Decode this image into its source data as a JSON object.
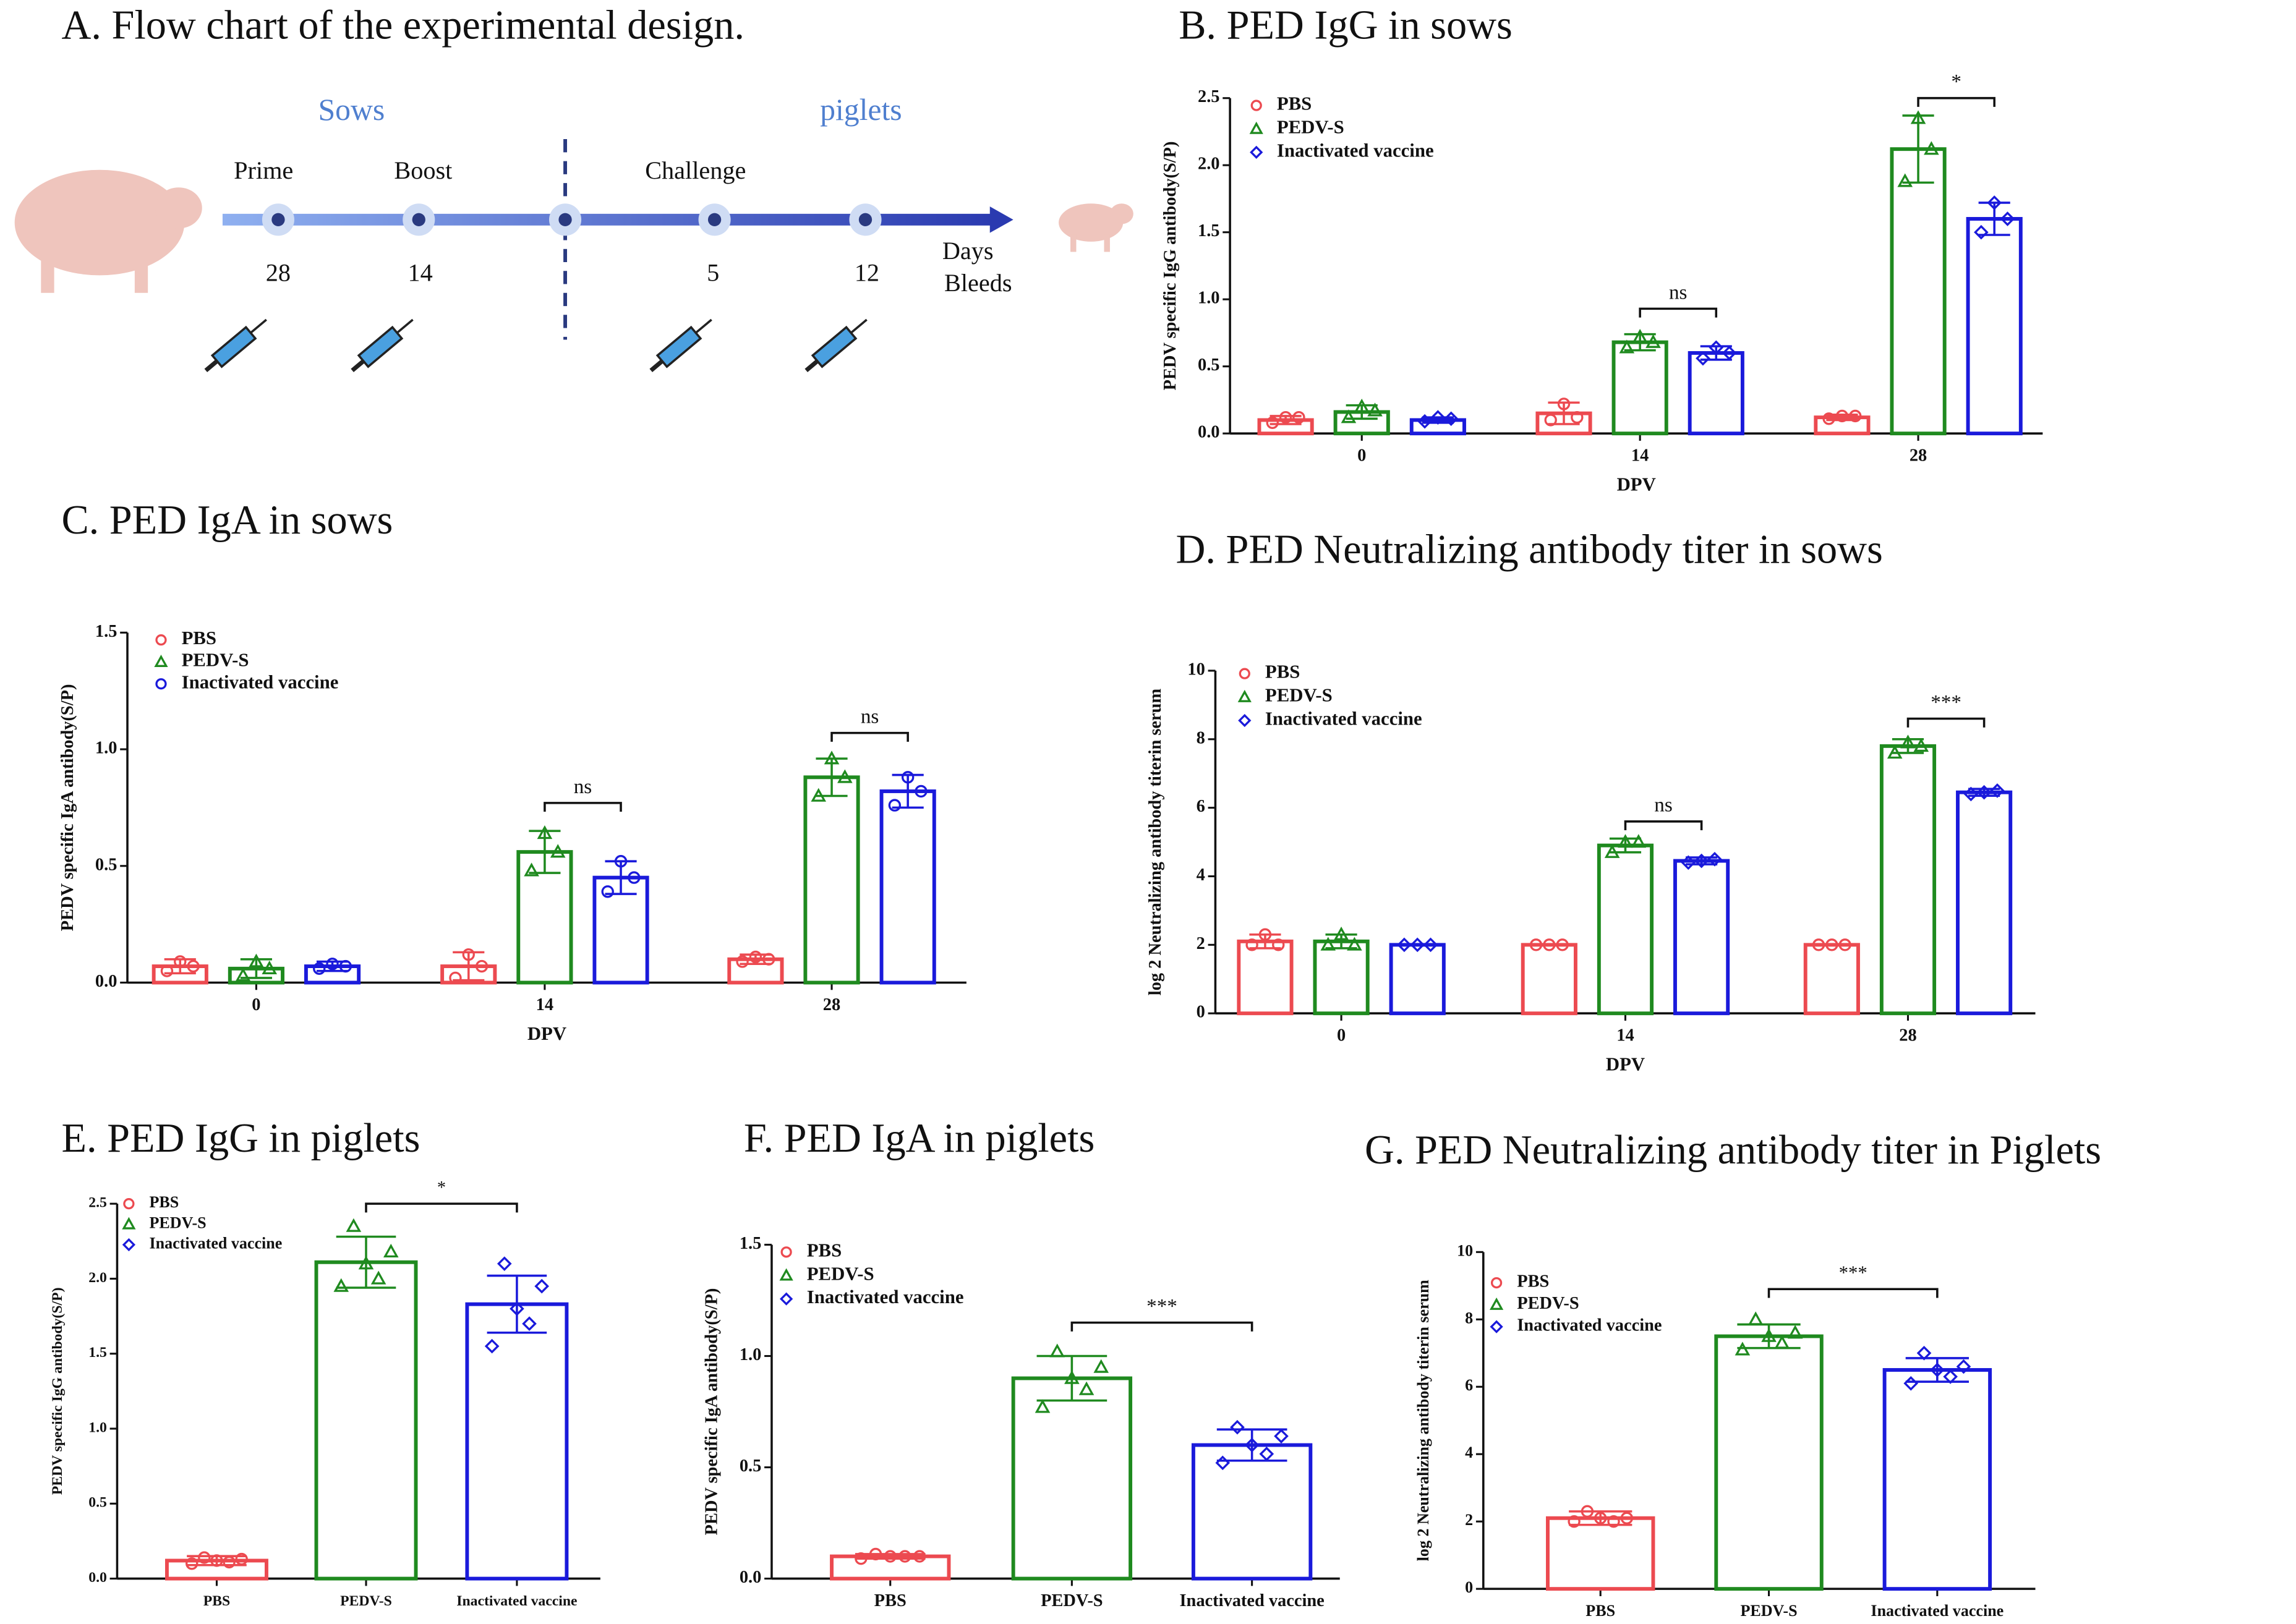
{
  "flow": {
    "title": "A. Flow chart of the experimental design.",
    "phases": [
      "Sows",
      "piglets"
    ],
    "events": [
      {
        "label": "Prime",
        "day": "28"
      },
      {
        "label": "Boost",
        "day": "14"
      },
      {
        "label": "Challenge",
        "day": "5"
      },
      {
        "day": "12"
      }
    ],
    "axis_labels": [
      "Days",
      "Bleeds"
    ]
  },
  "chart_data": [
    {
      "type": "bar",
      "title": "B. PED IgG in sows",
      "xlabel": "DPV",
      "ylabel": "PEDV specific IgG  antibody(S/P)",
      "categories": [
        "0",
        "14",
        "28"
      ],
      "ylim": [
        0,
        2.5
      ],
      "yticks": [
        {
          "value": 0,
          "label": "0.0"
        },
        0.5,
        {
          "value": 1,
          "label": "1.0"
        },
        1.5,
        {
          "value": 2,
          "label": "2.0"
        },
        2.5
      ],
      "series": [
        {
          "name": "PBS",
          "color": "#ec4a50",
          "marker": "circle",
          "values": [
            0.1,
            0.15,
            0.12
          ],
          "errors": [
            0.03,
            0.08,
            0.02
          ],
          "points": [
            [
              0.08,
              0.12,
              0.12
            ],
            [
              0.1,
              0.22,
              0.12
            ],
            [
              0.11,
              0.13,
              0.13
            ]
          ]
        },
        {
          "name": "PEDV-S",
          "color": "#1f8a1f",
          "marker": "triangle",
          "values": [
            0.16,
            0.68,
            2.12
          ],
          "errors": [
            0.05,
            0.06,
            0.25
          ],
          "points": [
            [
              0.12,
              0.2,
              0.17
            ],
            [
              0.64,
              0.72,
              0.68
            ],
            [
              1.88,
              2.35,
              2.12
            ]
          ]
        },
        {
          "name": "Inactivated vaccine",
          "color": "#1a1adb",
          "marker": "diamond",
          "values": [
            0.1,
            0.6,
            1.6
          ],
          "errors": [
            0.02,
            0.05,
            0.12
          ],
          "points": [
            [
              0.09,
              0.12,
              0.11
            ],
            [
              0.56,
              0.64,
              0.6
            ],
            [
              1.5,
              1.72,
              1.6
            ]
          ]
        }
      ],
      "brackets": [
        {
          "category": "14",
          "label": "ns",
          "y": 0.93
        },
        {
          "category": "28",
          "label": "*",
          "y": 2.5
        }
      ]
    },
    {
      "type": "bar",
      "title": "C. PED IgA in sows",
      "xlabel": "DPV",
      "ylabel": "PEDV specific IgA  antibody(S/P)",
      "categories": [
        "0",
        "14",
        "28"
      ],
      "ylim": [
        0,
        1.5
      ],
      "yticks": [
        {
          "value": 0,
          "label": "0.0"
        },
        0.5,
        {
          "value": 1,
          "label": "1.0"
        },
        1.5
      ],
      "series": [
        {
          "name": "PBS",
          "color": "#ec4a50",
          "marker": "circle",
          "values": [
            0.07,
            0.07,
            0.1
          ],
          "errors": [
            0.03,
            0.06,
            0.02
          ],
          "points": [
            [
              0.05,
              0.09,
              0.07
            ],
            [
              0.02,
              0.12,
              0.07
            ],
            [
              0.09,
              0.11,
              0.1
            ]
          ]
        },
        {
          "name": "PEDV-S",
          "color": "#1f8a1f",
          "marker": "triangle",
          "values": [
            0.06,
            0.56,
            0.88
          ],
          "errors": [
            0.04,
            0.09,
            0.08
          ],
          "points": [
            [
              0.03,
              0.09,
              0.06
            ],
            [
              0.48,
              0.64,
              0.56
            ],
            [
              0.8,
              0.96,
              0.88
            ]
          ]
        },
        {
          "name": "Inactivated vaccine",
          "color": "#1a1adb",
          "marker": "circle",
          "values": [
            0.07,
            0.45,
            0.82
          ],
          "errors": [
            0.02,
            0.07,
            0.07
          ],
          "points": [
            [
              0.06,
              0.08,
              0.07
            ],
            [
              0.39,
              0.52,
              0.45
            ],
            [
              0.76,
              0.88,
              0.82
            ]
          ]
        }
      ],
      "brackets": [
        {
          "category": "14",
          "label": "ns",
          "y": 0.77
        },
        {
          "category": "28",
          "label": "ns",
          "y": 1.07
        }
      ]
    },
    {
      "type": "bar",
      "title": "D. PED Neutralizing antibody titer in sows",
      "xlabel": "DPV",
      "ylabel": "log 2 Neutralizing antibody titerin serum",
      "categories": [
        "0",
        "14",
        "28"
      ],
      "ylim": [
        0,
        10
      ],
      "yticks": [
        0,
        2,
        4,
        6,
        8,
        10
      ],
      "series": [
        {
          "name": "PBS",
          "color": "#ec4a50",
          "marker": "circle",
          "values": [
            2.1,
            2,
            2
          ],
          "errors": [
            0.2,
            0,
            0
          ],
          "points": [
            [
              2,
              2.3,
              2
            ],
            [
              2,
              2,
              2
            ],
            [
              2,
              2,
              2
            ]
          ]
        },
        {
          "name": "PEDV-S",
          "color": "#1f8a1f",
          "marker": "triangle",
          "values": [
            2.1,
            4.9,
            7.8
          ],
          "errors": [
            0.2,
            0.2,
            0.2
          ],
          "points": [
            [
              2,
              2.3,
              2
            ],
            [
              4.7,
              5,
              5
            ],
            [
              7.6,
              7.9,
              7.8
            ]
          ]
        },
        {
          "name": "Inactivated vaccine",
          "color": "#1a1adb",
          "marker": "diamond",
          "values": [
            2,
            4.45,
            6.45
          ],
          "errors": [
            0,
            0.1,
            0.1
          ],
          "points": [
            [
              2,
              2,
              2
            ],
            [
              4.4,
              4.45,
              4.5
            ],
            [
              6.4,
              6.45,
              6.5
            ]
          ]
        }
      ],
      "brackets": [
        {
          "category": "14",
          "label": "ns",
          "y": 5.6
        },
        {
          "category": "28",
          "label": "***",
          "y": 8.6
        }
      ]
    },
    {
      "type": "bar",
      "title": "E. PED IgG in piglets",
      "ylabel": "PEDV specific IgG  antibody(S/P)",
      "categories": [
        "PBS",
        "PEDV-S",
        "Inactivated vaccine"
      ],
      "ylim": [
        0,
        2.5
      ],
      "yticks": [
        {
          "value": 0,
          "label": "0.0"
        },
        0.5,
        {
          "value": 1,
          "label": "1.0"
        },
        1.5,
        {
          "value": 2,
          "label": "2.0"
        },
        2.5
      ],
      "colors": [
        "#ec4a50",
        "#1f8a1f",
        "#1a1adb"
      ],
      "markers": [
        "circle",
        "triangle",
        "diamond"
      ],
      "values": [
        0.12,
        2.11,
        1.83
      ],
      "errors": [
        0.03,
        0.17,
        0.19
      ],
      "points": [
        [
          0.1,
          0.14,
          0.12,
          0.11,
          0.13
        ],
        [
          1.95,
          2.35,
          2.1,
          2.0,
          2.18
        ],
        [
          1.55,
          2.1,
          1.8,
          1.7,
          1.95
        ]
      ],
      "brackets": [
        {
          "label": "*",
          "y": 2.5
        }
      ]
    },
    {
      "type": "bar",
      "title": "F. PED IgA in piglets",
      "ylabel": "PEDV specific IgA  antibody(S/P)",
      "categories": [
        "PBS",
        "PEDV-S",
        "Inactivated vaccine"
      ],
      "ylim": [
        0,
        1.5
      ],
      "yticks": [
        {
          "value": 0,
          "label": "0.0"
        },
        0.5,
        {
          "value": 1,
          "label": "1.0"
        },
        1.5
      ],
      "colors": [
        "#ec4a50",
        "#1f8a1f",
        "#1a1adb"
      ],
      "markers": [
        "circle",
        "triangle",
        "diamond"
      ],
      "values": [
        0.1,
        0.9,
        0.6
      ],
      "errors": [
        0.01,
        0.1,
        0.07
      ],
      "points": [
        [
          0.09,
          0.11,
          0.1,
          0.1,
          0.1
        ],
        [
          0.77,
          1.02,
          0.9,
          0.85,
          0.95
        ],
        [
          0.52,
          0.68,
          0.6,
          0.56,
          0.64
        ]
      ],
      "brackets": [
        {
          "label": "***",
          "y": 1.15
        }
      ]
    },
    {
      "type": "bar",
      "title": "G. PED Neutralizing antibody titer in Piglets",
      "ylabel": "log 2 Neutralizing antibody titerin serum",
      "categories": [
        "PBS",
        "PEDV-S",
        "Inactivated vaccine"
      ],
      "ylim": [
        0,
        10
      ],
      "yticks": [
        0,
        2,
        4,
        6,
        8,
        10
      ],
      "colors": [
        "#ec4a50",
        "#1f8a1f",
        "#1a1adb"
      ],
      "markers": [
        "circle",
        "triangle",
        "diamond"
      ],
      "values": [
        2.1,
        7.5,
        6.5
      ],
      "errors": [
        0.2,
        0.35,
        0.35
      ],
      "points": [
        [
          2,
          2.3,
          2.1,
          2,
          2.1
        ],
        [
          7.1,
          8,
          7.5,
          7.3,
          7.6
        ],
        [
          6.1,
          7,
          6.5,
          6.3,
          6.6
        ]
      ],
      "brackets": [
        {
          "label": "***",
          "y": 8.9
        }
      ]
    }
  ]
}
